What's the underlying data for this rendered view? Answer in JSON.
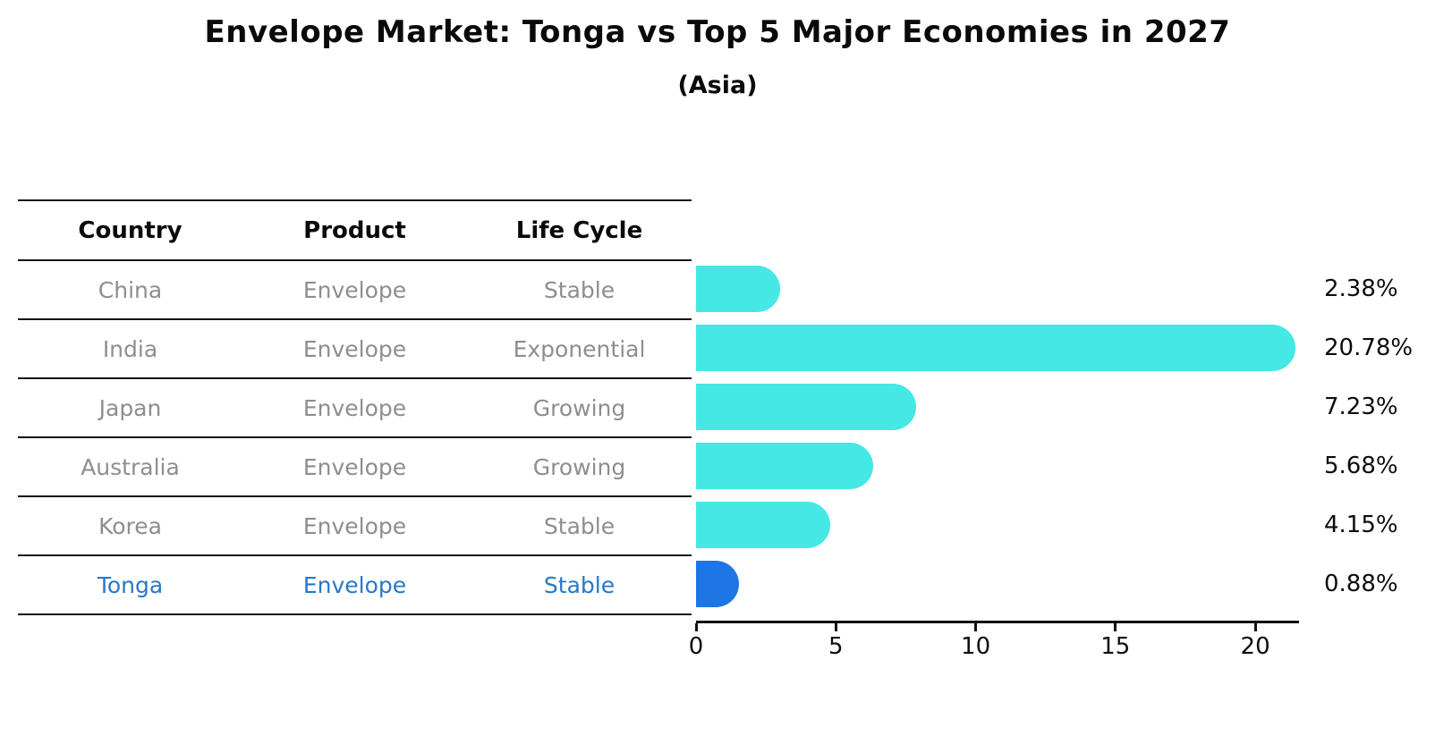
{
  "page": {
    "background": "#ffffff"
  },
  "chart_data": {
    "type": "bar",
    "orientation": "horizontal",
    "title": "Envelope Market: Tonga vs Top 5 Major Economies in 2027",
    "subtitle": "(Asia)",
    "categories": [
      "China",
      "India",
      "Japan",
      "Australia",
      "Korea",
      "Tonga"
    ],
    "values": [
      2.38,
      20.78,
      7.23,
      5.68,
      4.15,
      0.88
    ],
    "value_labels": [
      "2.38%",
      "20.78%",
      "7.23%",
      "5.68%",
      "4.15%",
      "0.88%"
    ],
    "highlight_index": 5,
    "xlabel": "",
    "ylabel": "",
    "xlim": [
      0,
      21.5
    ],
    "x_tick_values": [
      0,
      5,
      10,
      15,
      20
    ],
    "x_tick_labels": [
      "0",
      "5",
      "10",
      "15",
      "20"
    ],
    "grid": false,
    "legend": "none",
    "colors": {
      "bar": "#45E8E4",
      "highlight_bar": "#1E75E5",
      "value_label": "#0d0d0d",
      "axis": "#111111"
    }
  },
  "table": {
    "headers": [
      "Country",
      "Product",
      "Life Cycle"
    ],
    "rows": [
      {
        "country": "China",
        "product": "Envelope",
        "life_cycle": "Stable"
      },
      {
        "country": "India",
        "product": "Envelope",
        "life_cycle": "Exponential"
      },
      {
        "country": "Japan",
        "product": "Envelope",
        "life_cycle": "Growing"
      },
      {
        "country": "Australia",
        "product": "Envelope",
        "life_cycle": "Growing"
      },
      {
        "country": "Korea",
        "product": "Envelope",
        "life_cycle": "Stable"
      },
      {
        "country": "Tonga",
        "product": "Envelope",
        "life_cycle": "Stable"
      }
    ],
    "highlight_row_index": 5,
    "colors": {
      "row_text": "#8E8E8E",
      "highlight_text": "#2878C8",
      "line": "#111111"
    }
  }
}
